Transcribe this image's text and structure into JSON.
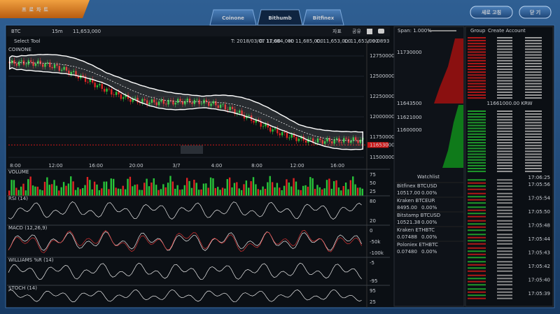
{
  "header": {
    "title": "프로차트",
    "tabs": [
      "Coinone",
      "Bithumb",
      "Bitfinex"
    ],
    "buttons": [
      "새로 고침",
      "닫 기"
    ]
  },
  "chart": {
    "symbol": "BTC",
    "interval": "15m",
    "price": "11,653,000",
    "tools": [
      "자표",
      "공유"
    ],
    "select_tool": "Select Tool",
    "main_label": "COINONE",
    "ohlc": [
      "T: 2018/03/07 17:00",
      "O: 11,684,000",
      "H: 11,685,000",
      "C: 11,653,000",
      "L: 11,653,000",
      "V: 9.0893"
    ],
    "price_axis": [
      12750000,
      12500000,
      12250000,
      12000000,
      11750000,
      11500000
    ],
    "current_price": 11653000,
    "time_axis": [
      "8:00",
      "12:00",
      "16:00",
      "20:00",
      "3/7",
      "4:00",
      "8:00",
      "12:00",
      "16:00"
    ],
    "panels": [
      {
        "name": "VOLUME",
        "ticks": [
          "75",
          "50",
          "25"
        ]
      },
      {
        "name": "RSI (14)",
        "ticks": [
          "80",
          "20"
        ]
      },
      {
        "name": "MACD (12,26,9)",
        "ticks": [
          "0",
          "-50k",
          "-100k"
        ]
      },
      {
        "name": "WILLIAMS %R (14)",
        "ticks": [
          "-5",
          "-95"
        ]
      },
      {
        "name": "STOCH (14)",
        "ticks": [
          "95",
          "25"
        ]
      }
    ]
  },
  "orderbook": {
    "span": "Span: 1.000%",
    "axis": [
      "11730000",
      "11643500",
      "11621000",
      "11600000"
    ]
  },
  "watchlist": {
    "title": "Watchlist",
    "items": [
      {
        "name": "Bitfinex BTCUSD",
        "price": "10517.00",
        "change": "0.00%"
      },
      {
        "name": "Kraken BTCEUR",
        "price": "8495.00",
        "change": "0.00%"
      },
      {
        "name": "Bitstamp BTCUSD",
        "price": "10521.38",
        "change": "0.00%"
      },
      {
        "name": "Kraken ETHBTC",
        "price": "0.07488",
        "change": "0.00%"
      },
      {
        "name": "Poloniex ETHBTC",
        "price": "0.07480",
        "change": "0.00%"
      }
    ]
  },
  "trades": {
    "group": "Group",
    "create": "Create Account",
    "mid": "11661000.00 KRW",
    "time": "17:06:25",
    "times": [
      "17:05:56",
      "17:05:54",
      "17:05:50",
      "17:05:48",
      "17:05:44",
      "17:05:43",
      "17:05:42",
      "17:05:40",
      "17:05:39"
    ]
  }
}
